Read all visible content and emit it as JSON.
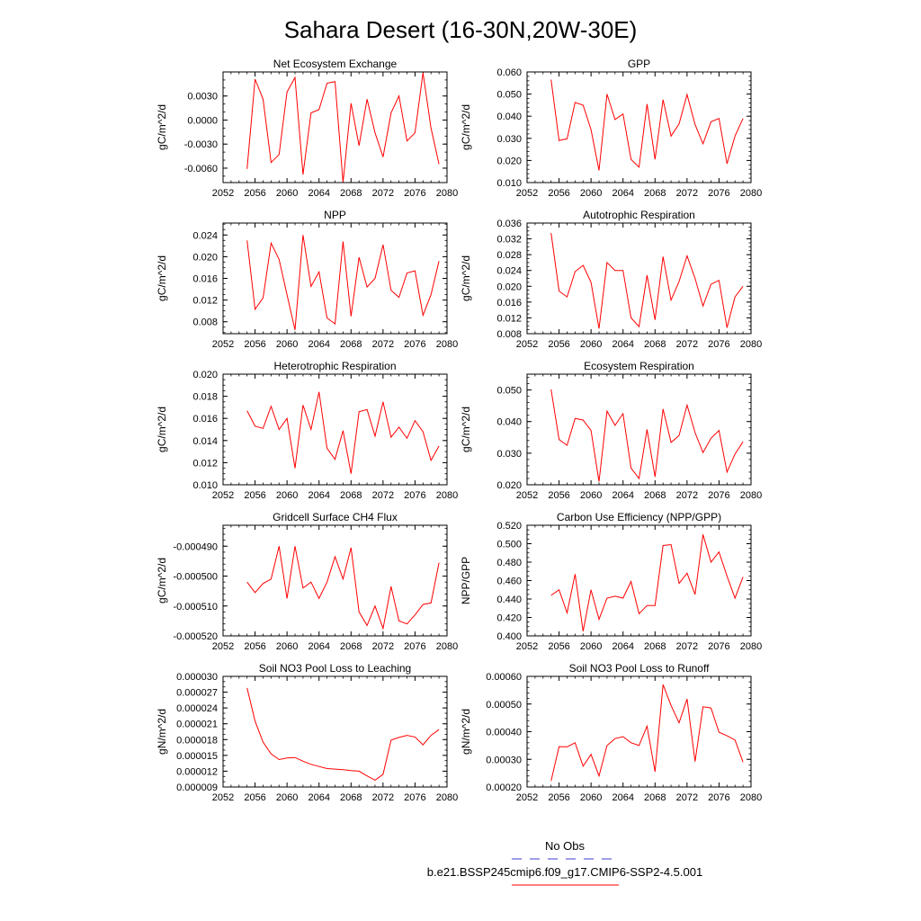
{
  "page_title": "Sahara Desert (16-30N,20W-30E)",
  "legend": {
    "obs_label": "No Obs",
    "obs_color": "#3b3bd6",
    "model_label": "b.e21.BSSP245cmip6.f09_g17.CMIP6-SSP2-4.5.001",
    "model_color": "#ff0000"
  },
  "chart_data": [
    {
      "type": "line",
      "title": "Net Ecosystem Exchange",
      "ylabel": "gC/m^2/d",
      "xlim": [
        2052,
        2080
      ],
      "x_ticks": [
        2052,
        2056,
        2060,
        2064,
        2068,
        2072,
        2076,
        2080
      ],
      "x_tick_labels": [
        "2052",
        "2056",
        "2060",
        "2064",
        "2068",
        "2072",
        "2076",
        "2080"
      ],
      "ylim": [
        -0.0078,
        0.006
      ],
      "y_ticks": [
        -0.006,
        -0.003,
        0.0,
        0.003
      ],
      "y_tick_labels": [
        "-0.0060",
        "-0.0030",
        "0.0000",
        "0.0030"
      ],
      "y_minor": 0.001,
      "series": [
        {
          "x": [
            2055,
            2056,
            2057,
            2058,
            2059,
            2060,
            2061,
            2062,
            2063,
            2064,
            2065,
            2066,
            2067,
            2068,
            2069,
            2070,
            2071,
            2072,
            2073,
            2074,
            2075,
            2076,
            2077,
            2078,
            2079
          ],
          "values": [
            -0.0061,
            0.0051,
            0.0026,
            -0.0053,
            -0.0043,
            0.0035,
            0.0053,
            -0.0068,
            0.0009,
            0.0013,
            0.0046,
            0.0048,
            -0.0078,
            0.0021,
            -0.0032,
            0.0026,
            -0.0016,
            -0.0046,
            0.0009,
            0.003,
            -0.0026,
            -0.0016,
            0.0059,
            -0.001,
            -0.0055
          ]
        }
      ]
    },
    {
      "type": "line",
      "title": "GPP",
      "ylabel": "gC/m^2/d",
      "xlim": [
        2052,
        2080
      ],
      "x_ticks": [
        2052,
        2056,
        2060,
        2064,
        2068,
        2072,
        2076,
        2080
      ],
      "x_tick_labels": [
        "2052",
        "2056",
        "2060",
        "2064",
        "2068",
        "2072",
        "2076",
        "2080"
      ],
      "ylim": [
        0.01,
        0.06
      ],
      "y_ticks": [
        0.01,
        0.02,
        0.03,
        0.04,
        0.05,
        0.06
      ],
      "y_tick_labels": [
        "0.010",
        "0.020",
        "0.030",
        "0.040",
        "0.050",
        "0.060"
      ],
      "y_minor": 0.002,
      "series": [
        {
          "x": [
            2055,
            2056,
            2057,
            2058,
            2059,
            2060,
            2061,
            2062,
            2063,
            2064,
            2065,
            2066,
            2067,
            2068,
            2069,
            2070,
            2071,
            2072,
            2073,
            2074,
            2075,
            2076,
            2077,
            2078,
            2079
          ],
          "values": [
            0.0565,
            0.029,
            0.0298,
            0.0462,
            0.045,
            0.034,
            0.0155,
            0.05,
            0.0385,
            0.041,
            0.0205,
            0.017,
            0.0455,
            0.0205,
            0.0475,
            0.031,
            0.0365,
            0.0498,
            0.0362,
            0.0275,
            0.0375,
            0.039,
            0.0185,
            0.031,
            0.039
          ]
        }
      ]
    },
    {
      "type": "line",
      "title": "NPP",
      "ylabel": "gC/m^2/d",
      "xlim": [
        2052,
        2080
      ],
      "x_ticks": [
        2052,
        2056,
        2060,
        2064,
        2068,
        2072,
        2076,
        2080
      ],
      "x_tick_labels": [
        "2052",
        "2056",
        "2060",
        "2064",
        "2068",
        "2072",
        "2076",
        "2080"
      ],
      "ylim": [
        0.0058,
        0.0262
      ],
      "y_ticks": [
        0.008,
        0.012,
        0.016,
        0.02,
        0.024
      ],
      "y_tick_labels": [
        "0.008",
        "0.012",
        "0.016",
        "0.020",
        "0.024"
      ],
      "y_minor": 0.001,
      "series": [
        {
          "x": [
            2055,
            2056,
            2057,
            2058,
            2059,
            2060,
            2061,
            2062,
            2063,
            2064,
            2065,
            2066,
            2067,
            2068,
            2069,
            2070,
            2071,
            2072,
            2073,
            2074,
            2075,
            2076,
            2077,
            2078,
            2079
          ],
          "values": [
            0.023,
            0.0103,
            0.0124,
            0.0225,
            0.0195,
            0.013,
            0.0065,
            0.024,
            0.0145,
            0.0172,
            0.0087,
            0.0076,
            0.0228,
            0.009,
            0.0199,
            0.0144,
            0.016,
            0.0222,
            0.0138,
            0.0125,
            0.017,
            0.0174,
            0.0092,
            0.013,
            0.0192
          ]
        }
      ]
    },
    {
      "type": "line",
      "title": "Autotrophic Respiration",
      "ylabel": "gC/m^2/d",
      "xlim": [
        2052,
        2080
      ],
      "x_ticks": [
        2052,
        2056,
        2060,
        2064,
        2068,
        2072,
        2076,
        2080
      ],
      "x_tick_labels": [
        "2052",
        "2056",
        "2060",
        "2064",
        "2068",
        "2072",
        "2076",
        "2080"
      ],
      "ylim": [
        0.008,
        0.036
      ],
      "y_ticks": [
        0.008,
        0.012,
        0.016,
        0.02,
        0.024,
        0.028,
        0.032,
        0.036
      ],
      "y_tick_labels": [
        "0.008",
        "0.012",
        "0.016",
        "0.020",
        "0.024",
        "0.028",
        "0.032",
        "0.036"
      ],
      "y_minor": 0.001,
      "series": [
        {
          "x": [
            2055,
            2056,
            2057,
            2058,
            2059,
            2060,
            2061,
            2062,
            2063,
            2064,
            2065,
            2066,
            2067,
            2068,
            2069,
            2070,
            2071,
            2072,
            2073,
            2074,
            2075,
            2076,
            2077,
            2078,
            2079
          ],
          "values": [
            0.0335,
            0.0188,
            0.0173,
            0.0237,
            0.0253,
            0.021,
            0.0093,
            0.026,
            0.024,
            0.024,
            0.012,
            0.0098,
            0.0228,
            0.0115,
            0.0275,
            0.0165,
            0.0212,
            0.0277,
            0.022,
            0.015,
            0.0205,
            0.0215,
            0.0095,
            0.0173,
            0.02
          ]
        }
      ]
    },
    {
      "type": "line",
      "title": "Heterotrophic Respiration",
      "ylabel": "gC/m^2/d",
      "xlim": [
        2052,
        2080
      ],
      "x_ticks": [
        2052,
        2056,
        2060,
        2064,
        2068,
        2072,
        2076,
        2080
      ],
      "x_tick_labels": [
        "2052",
        "2056",
        "2060",
        "2064",
        "2068",
        "2072",
        "2076",
        "2080"
      ],
      "ylim": [
        0.01,
        0.02
      ],
      "y_ticks": [
        0.01,
        0.012,
        0.014,
        0.016,
        0.018,
        0.02
      ],
      "y_tick_labels": [
        "0.010",
        "0.012",
        "0.014",
        "0.016",
        "0.018",
        "0.020"
      ],
      "y_minor": 0.0005,
      "series": [
        {
          "x": [
            2055,
            2056,
            2057,
            2058,
            2059,
            2060,
            2061,
            2062,
            2063,
            2064,
            2065,
            2066,
            2067,
            2068,
            2069,
            2070,
            2071,
            2072,
            2073,
            2074,
            2075,
            2076,
            2077,
            2078,
            2079
          ],
          "values": [
            0.0167,
            0.0153,
            0.0151,
            0.0171,
            0.015,
            0.016,
            0.0115,
            0.0172,
            0.015,
            0.0184,
            0.0133,
            0.0123,
            0.0149,
            0.011,
            0.0166,
            0.0168,
            0.0144,
            0.0175,
            0.0143,
            0.0152,
            0.0142,
            0.0158,
            0.0148,
            0.0122,
            0.0135
          ]
        }
      ]
    },
    {
      "type": "line",
      "title": "Ecosystem Respiration",
      "ylabel": "gC/m^2/d",
      "xlim": [
        2052,
        2080
      ],
      "x_ticks": [
        2052,
        2056,
        2060,
        2064,
        2068,
        2072,
        2076,
        2080
      ],
      "x_tick_labels": [
        "2052",
        "2056",
        "2060",
        "2064",
        "2068",
        "2072",
        "2076",
        "2080"
      ],
      "ylim": [
        0.02,
        0.055
      ],
      "y_ticks": [
        0.02,
        0.03,
        0.04,
        0.05
      ],
      "y_tick_labels": [
        "0.020",
        "0.030",
        "0.040",
        "0.050"
      ],
      "y_minor": 0.002,
      "series": [
        {
          "x": [
            2055,
            2056,
            2057,
            2058,
            2059,
            2060,
            2061,
            2062,
            2063,
            2064,
            2065,
            2066,
            2067,
            2068,
            2069,
            2070,
            2071,
            2072,
            2073,
            2074,
            2075,
            2076,
            2077,
            2078,
            2079
          ],
          "values": [
            0.0502,
            0.0343,
            0.0325,
            0.041,
            0.0405,
            0.0372,
            0.021,
            0.0433,
            0.0388,
            0.0425,
            0.0253,
            0.022,
            0.0375,
            0.0225,
            0.044,
            0.0334,
            0.0356,
            0.0452,
            0.0365,
            0.0302,
            0.0347,
            0.0372,
            0.024,
            0.0297,
            0.0336
          ]
        }
      ]
    },
    {
      "type": "line",
      "title": "Gridcell Surface CH4 Flux",
      "ylabel": "gC/m^2/d",
      "xlim": [
        2052,
        2080
      ],
      "x_ticks": [
        2052,
        2056,
        2060,
        2064,
        2068,
        2072,
        2076,
        2080
      ],
      "x_tick_labels": [
        "2052",
        "2056",
        "2060",
        "2064",
        "2068",
        "2072",
        "2076",
        "2080"
      ],
      "ylim": [
        -0.00052,
        -0.000483
      ],
      "y_ticks": [
        -0.00052,
        -0.00051,
        -0.0005,
        -0.00049
      ],
      "y_tick_labels": [
        "-0.000520",
        "-0.000510",
        "-0.000500",
        "-0.000490"
      ],
      "y_minor": 2e-06,
      "series": [
        {
          "x": [
            2055,
            2056,
            2057,
            2058,
            2059,
            2060,
            2061,
            2062,
            2063,
            2064,
            2065,
            2066,
            2067,
            2068,
            2069,
            2070,
            2071,
            2072,
            2073,
            2074,
            2075,
            2076,
            2077,
            2078,
            2079
          ],
          "values": [
            -0.000502,
            -0.0005055,
            -0.0005025,
            -0.000501,
            -0.00049,
            -0.0005075,
            -0.00049,
            -0.000504,
            -0.000502,
            -0.0005075,
            -0.000502,
            -0.0004935,
            -0.000501,
            -0.0004905,
            -0.000512,
            -0.0005165,
            -0.00051,
            -0.0005175,
            -0.0005035,
            -0.000515,
            -0.000516,
            -0.000513,
            -0.0005095,
            -0.000509,
            -0.0004955
          ]
        }
      ]
    },
    {
      "type": "line",
      "title": "Carbon Use Efficiency (NPP/GPP)",
      "ylabel": "NPP/GPP",
      "xlim": [
        2052,
        2080
      ],
      "x_ticks": [
        2052,
        2056,
        2060,
        2064,
        2068,
        2072,
        2076,
        2080
      ],
      "x_tick_labels": [
        "2052",
        "2056",
        "2060",
        "2064",
        "2068",
        "2072",
        "2076",
        "2080"
      ],
      "ylim": [
        0.4,
        0.52
      ],
      "y_ticks": [
        0.4,
        0.42,
        0.44,
        0.46,
        0.48,
        0.5,
        0.52
      ],
      "y_tick_labels": [
        "0.400",
        "0.420",
        "0.440",
        "0.460",
        "0.480",
        "0.500",
        "0.520"
      ],
      "y_minor": 0.005,
      "series": [
        {
          "x": [
            2055,
            2056,
            2057,
            2058,
            2059,
            2060,
            2061,
            2062,
            2063,
            2064,
            2065,
            2066,
            2067,
            2068,
            2069,
            2070,
            2071,
            2072,
            2073,
            2074,
            2075,
            2076,
            2077,
            2078,
            2079
          ],
          "values": [
            0.444,
            0.45,
            0.425,
            0.467,
            0.405,
            0.45,
            0.418,
            0.441,
            0.443,
            0.441,
            0.459,
            0.424,
            0.433,
            0.433,
            0.498,
            0.499,
            0.457,
            0.468,
            0.445,
            0.51,
            0.48,
            0.491,
            0.465,
            0.441,
            0.464
          ]
        }
      ]
    },
    {
      "type": "line",
      "title": "Soil NO3 Pool Loss to Leaching",
      "ylabel": "gN/m^2/d",
      "xlim": [
        2052,
        2080
      ],
      "x_ticks": [
        2052,
        2056,
        2060,
        2064,
        2068,
        2072,
        2076,
        2080
      ],
      "x_tick_labels": [
        "2052",
        "2056",
        "2060",
        "2064",
        "2068",
        "2072",
        "2076",
        "2080"
      ],
      "ylim": [
        9e-06,
        3e-05
      ],
      "y_ticks": [
        9e-06,
        1.2e-05,
        1.5e-05,
        1.8e-05,
        2.1e-05,
        2.4e-05,
        2.7e-05,
        3e-05
      ],
      "y_tick_labels": [
        "0.000009",
        "0.000012",
        "0.000015",
        "0.000018",
        "0.000021",
        "0.000024",
        "0.000027",
        "0.000030"
      ],
      "y_minor": 1e-06,
      "series": [
        {
          "x": [
            2055,
            2056,
            2057,
            2058,
            2059,
            2060,
            2061,
            2062,
            2063,
            2064,
            2065,
            2066,
            2067,
            2068,
            2069,
            2070,
            2071,
            2072,
            2073,
            2074,
            2075,
            2076,
            2077,
            2078,
            2079
          ],
          "values": [
            2.78e-05,
            2.15e-05,
            1.75e-05,
            1.53e-05,
            1.42e-05,
            1.45e-05,
            1.46e-05,
            1.39e-05,
            1.33e-05,
            1.29e-05,
            1.25e-05,
            1.24e-05,
            1.23e-05,
            1.21e-05,
            1.2e-05,
            1.11e-05,
            1.03e-05,
            1.14e-05,
            1.79e-05,
            1.84e-05,
            1.88e-05,
            1.85e-05,
            1.7e-05,
            1.88e-05,
            1.99e-05
          ]
        }
      ]
    },
    {
      "type": "line",
      "title": "Soil NO3 Pool Loss to Runoff",
      "ylabel": "gN/m^2/d",
      "xlim": [
        2052,
        2080
      ],
      "x_ticks": [
        2052,
        2056,
        2060,
        2064,
        2068,
        2072,
        2076,
        2080
      ],
      "x_tick_labels": [
        "2052",
        "2056",
        "2060",
        "2064",
        "2068",
        "2072",
        "2076",
        "2080"
      ],
      "ylim": [
        0.0002,
        0.0006
      ],
      "y_ticks": [
        0.0002,
        0.0003,
        0.0004,
        0.0005,
        0.0006
      ],
      "y_tick_labels": [
        "0.00020",
        "0.00030",
        "0.00040",
        "0.00050",
        "0.00060"
      ],
      "y_minor": 2e-05,
      "series": [
        {
          "x": [
            2055,
            2056,
            2057,
            2058,
            2059,
            2060,
            2061,
            2062,
            2063,
            2064,
            2065,
            2066,
            2067,
            2068,
            2069,
            2070,
            2071,
            2072,
            2073,
            2074,
            2075,
            2076,
            2077,
            2078,
            2079
          ],
          "values": [
            0.000222,
            0.000346,
            0.000345,
            0.00036,
            0.000275,
            0.000318,
            0.00024,
            0.00035,
            0.000375,
            0.000382,
            0.00036,
            0.00035,
            0.00042,
            0.000255,
            0.00057,
            0.000495,
            0.000432,
            0.000518,
            0.000292,
            0.00049,
            0.000486,
            0.000398,
            0.000385,
            0.00037,
            0.00029
          ]
        }
      ]
    }
  ]
}
